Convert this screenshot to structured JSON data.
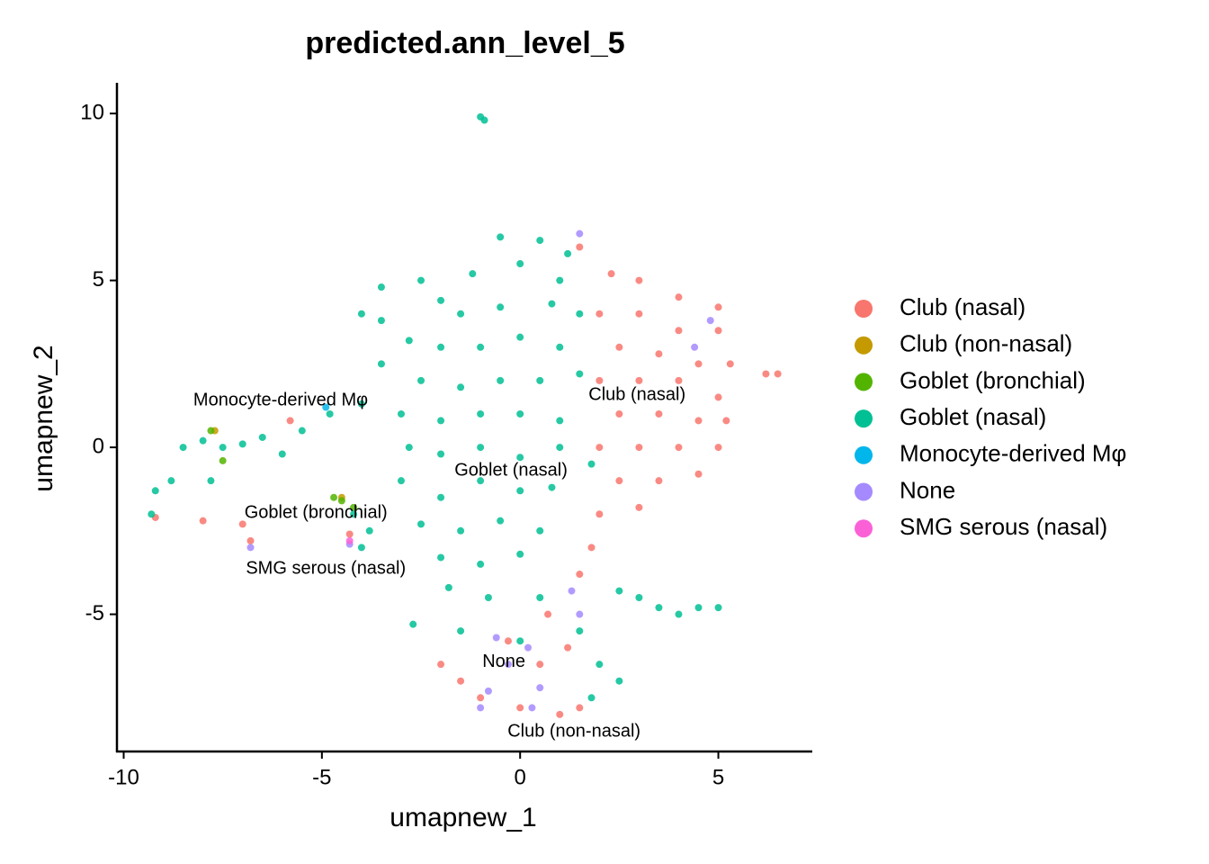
{
  "chart_data": {
    "type": "scatter",
    "title": "predicted.ann_level_5",
    "x_label": "umapnew_1",
    "y_label": "umapnew_2",
    "xlim": [
      -10.17,
      7.37
    ],
    "ylim": [
      -9.11,
      10.92
    ],
    "xticks": [
      -10,
      -5,
      0,
      5
    ],
    "yticks": [
      -5,
      0,
      5,
      10
    ],
    "grid": false,
    "legend": "right",
    "series": [
      {
        "name": "Club (nasal)",
        "color": "#F8766D",
        "x": [
          1.5,
          2.3,
          3,
          4,
          5,
          2,
          3,
          4,
          5,
          2.5,
          3.5,
          4.5,
          5.3,
          6.2,
          6.5,
          2,
          3,
          4,
          5,
          2.5,
          3.5,
          4.5,
          5.2,
          2,
          3,
          4,
          5,
          2.5,
          3.5,
          4.5,
          2,
          3,
          1.8,
          1.5,
          -2,
          -1.5,
          -1,
          0,
          1,
          1.5,
          0.5,
          1.2,
          -8,
          -7,
          -6.8,
          -9.2,
          -4.3,
          -5.8,
          0.7,
          -0.3
        ],
        "y": [
          6,
          5.2,
          5,
          4.5,
          4.2,
          4,
          4,
          3.5,
          3.5,
          3,
          2.8,
          2.5,
          2.5,
          2.2,
          2.2,
          2,
          2,
          2,
          1.5,
          1,
          1,
          0.8,
          0.8,
          0,
          0,
          0,
          0,
          -1,
          -1,
          -0.8,
          -2,
          -1.8,
          -3,
          -3.8,
          -6.5,
          -7,
          -7.5,
          -7.8,
          -8,
          -7.8,
          -6.5,
          -6,
          -2.2,
          -2.3,
          -2.8,
          -2.1,
          -2.6,
          0.8,
          -5,
          -5.8
        ]
      },
      {
        "name": "Club (non-nasal)",
        "color": "#C49A00",
        "x": [
          -7.7,
          -4.5
        ],
        "y": [
          0.5,
          -1.5
        ]
      },
      {
        "name": "Goblet (bronchial)",
        "color": "#53B400",
        "x": [
          -4.7,
          -4.5,
          -7.8,
          -7.5,
          -4.2
        ],
        "y": [
          -1.5,
          -1.6,
          0.5,
          -0.4,
          -1.8
        ]
      },
      {
        "name": "Goblet (nasal)",
        "color": "#00C094",
        "x": [
          -1,
          -0.9,
          -0.5,
          0.5,
          1.2,
          -1.2,
          0,
          1,
          -3.5,
          -2.5,
          -2,
          -4,
          -3.5,
          -1.5,
          -0.5,
          0.8,
          1.5,
          -2.8,
          -2,
          -1,
          0,
          1,
          -3.5,
          -2.5,
          -1.5,
          -0.5,
          0.5,
          1.5,
          -3,
          -2,
          -1,
          0,
          1,
          -2.8,
          -2,
          -1,
          0,
          1,
          1.8,
          -3,
          -2,
          -1,
          0,
          0.8,
          -2.5,
          -1.5,
          -0.5,
          0.5,
          -2,
          -1,
          0,
          -1.8,
          -0.8,
          0.5,
          -2.7,
          -1.5,
          0,
          1.5,
          2,
          2.5,
          1.8,
          2.5,
          3.5,
          4.5,
          5,
          3,
          4,
          -8.5,
          -8,
          -7.5,
          -7,
          -8.8,
          -9.2,
          -9.3,
          -7.8,
          -6.5,
          -5.5,
          -4.8,
          -4,
          -6,
          -4.2,
          -4,
          -3.8
        ],
        "y": [
          9.9,
          9.8,
          6.3,
          6.2,
          5.8,
          5.2,
          5.5,
          5,
          4.8,
          5,
          4.4,
          4,
          3.8,
          4,
          4.2,
          4.3,
          4,
          3.2,
          3,
          3,
          3.3,
          3,
          2.5,
          2,
          1.8,
          2,
          2,
          2.2,
          1,
          0.8,
          1,
          1,
          0.8,
          0,
          -0.2,
          0,
          -0.3,
          0,
          -0.5,
          -1,
          -1.5,
          -1,
          -1.3,
          -1.2,
          -2.3,
          -2.5,
          -2.2,
          -2.5,
          -3.3,
          -3.5,
          -3.2,
          -4.2,
          -4.5,
          -4.5,
          -5.3,
          -5.5,
          -5.8,
          -5.5,
          -6.5,
          -7,
          -7.5,
          -4.3,
          -4.8,
          -4.8,
          -4.8,
          -4.5,
          -5,
          0,
          0.2,
          0,
          0.1,
          -1,
          -1.3,
          -2,
          -1,
          0.3,
          0.5,
          1,
          1.3,
          -0.2,
          -2,
          -3,
          -2.5
        ]
      },
      {
        "name": "Monocyte-derived Mφ",
        "color": "#00B6EB",
        "x": [
          -4.9
        ],
        "y": [
          1.2
        ]
      },
      {
        "name": "None",
        "color": "#A58AFF",
        "x": [
          -0.6,
          0.2,
          -0.3,
          0.5,
          -0.8,
          0.3,
          1.5,
          1.3,
          4.8,
          4.4,
          -4.3,
          -6.8,
          1.5,
          -1
        ],
        "y": [
          -5.7,
          -6,
          -6.5,
          -7.2,
          -7.3,
          -7.8,
          -5,
          -4.3,
          3.8,
          3,
          -2.9,
          -3,
          6.4,
          -7.8
        ]
      },
      {
        "name": "SMG serous (nasal)",
        "color": "#FB61D7",
        "x": [
          -4.3
        ],
        "y": [
          -2.8
        ]
      }
    ],
    "annotations": [
      {
        "text": "Monocyte-derived Mφ",
        "x": -6.04,
        "y": 1.4
      },
      {
        "text": "Club (nasal)",
        "x": 2.95,
        "y": 1.56
      },
      {
        "text": "Goblet (nasal)",
        "x": -0.23,
        "y": -0.7
      },
      {
        "text": "Goblet (bronchial)",
        "x": -5.15,
        "y": -1.97
      },
      {
        "text": "SMG serous (nasal)",
        "x": -4.9,
        "y": -3.64
      },
      {
        "text": "None",
        "x": -0.41,
        "y": -6.44
      },
      {
        "text": "Club (non-nasal)",
        "x": 1.36,
        "y": -8.52
      }
    ]
  }
}
